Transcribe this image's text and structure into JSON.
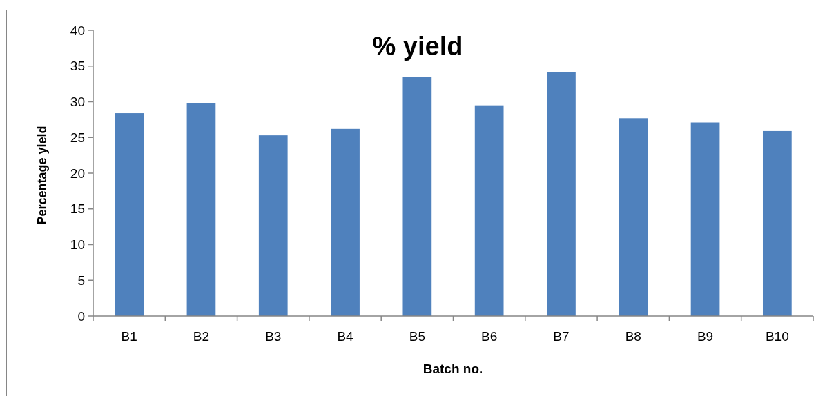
{
  "chart_data": {
    "type": "bar",
    "title": "% yield",
    "xlabel": "Batch no.",
    "ylabel": "Percentage yield",
    "categories": [
      "B1",
      "B2",
      "B3",
      "B4",
      "B5",
      "B6",
      "B7",
      "B8",
      "B9",
      "B10"
    ],
    "values": [
      28.4,
      29.8,
      25.3,
      26.2,
      33.5,
      29.5,
      34.2,
      27.7,
      27.1,
      25.9
    ],
    "color": "#4f81bd",
    "ylim": [
      0,
      40
    ],
    "yticks": [
      0,
      5,
      10,
      15,
      20,
      25,
      30,
      35,
      40
    ]
  }
}
